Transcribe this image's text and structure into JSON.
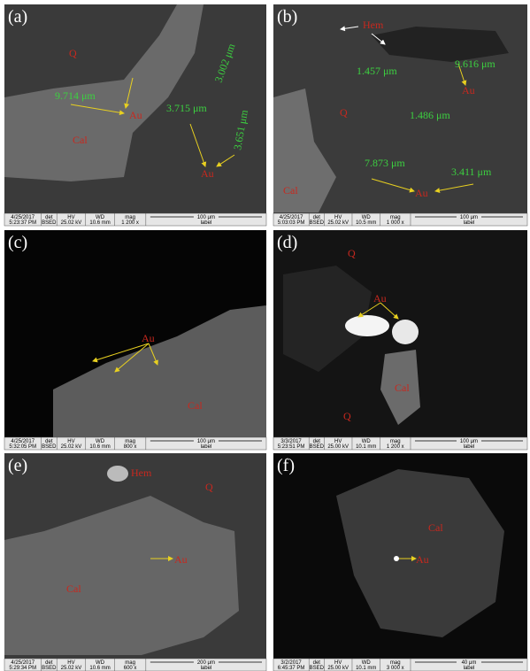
{
  "info_labels": {
    "det": "det",
    "hv": "HV",
    "wd": "WD",
    "mag": "mag",
    "label": "label"
  },
  "panels": [
    {
      "label": "(a)",
      "annotations": [
        "Q",
        "9.714 μm",
        "Au",
        "Cal",
        "3.715 μm",
        "3.002 μm",
        "3.651 μm",
        "Au"
      ],
      "info": {
        "date": "4/25/2017",
        "time": "5:23:37 PM",
        "detector": "BSED",
        "hv": "25.02 kV",
        "wd": "10.6 mm",
        "mag": "1 200 x",
        "scale": "100 μm"
      }
    },
    {
      "label": "(b)",
      "annotations": [
        "Hem",
        "9.616 μm",
        "1.457 μm",
        "Au",
        "Q",
        "1.486 μm",
        "7.873 μm",
        "3.411 μm",
        "Au",
        "Cal"
      ],
      "info": {
        "date": "4/25/2017",
        "time": "5:03:03 PM",
        "detector": "BSED",
        "hv": "25.02 kV",
        "wd": "10.5 mm",
        "mag": "1 000 x",
        "scale": "100 μm"
      }
    },
    {
      "label": "(c)",
      "annotations": [
        "Au",
        "Cal"
      ],
      "info": {
        "date": "4/25/2017",
        "time": "5:32:05 PM",
        "detector": "BSED",
        "hv": "25.02 kV",
        "wd": "10.6 mm",
        "mag": "800 x",
        "scale": "100 μm"
      }
    },
    {
      "label": "(d)",
      "annotations": [
        "Q",
        "Au",
        "Cal",
        "Q"
      ],
      "info": {
        "date": "3/3/2017",
        "time": "5:23:51 PM",
        "detector": "BSED",
        "hv": "25.00 kV",
        "wd": "10.1 mm",
        "mag": "1 200 x",
        "scale": "100 μm"
      }
    },
    {
      "label": "(e)",
      "annotations": [
        "Hem",
        "Q",
        "Au",
        "Cal"
      ],
      "info": {
        "date": "4/25/2017",
        "time": "5:29:34 PM",
        "detector": "BSED",
        "hv": "25.02 kV",
        "wd": "10.6 mm",
        "mag": "600 x",
        "scale": "200 μm"
      }
    },
    {
      "label": "(f)",
      "annotations": [
        "Cal",
        "Au"
      ],
      "info": {
        "date": "3/2/2017",
        "time": "6:45:37 PM",
        "detector": "BSED",
        "hv": "25.00 kV",
        "wd": "10.1 mm",
        "mag": "3 000 x",
        "scale": "40 μm"
      }
    }
  ]
}
